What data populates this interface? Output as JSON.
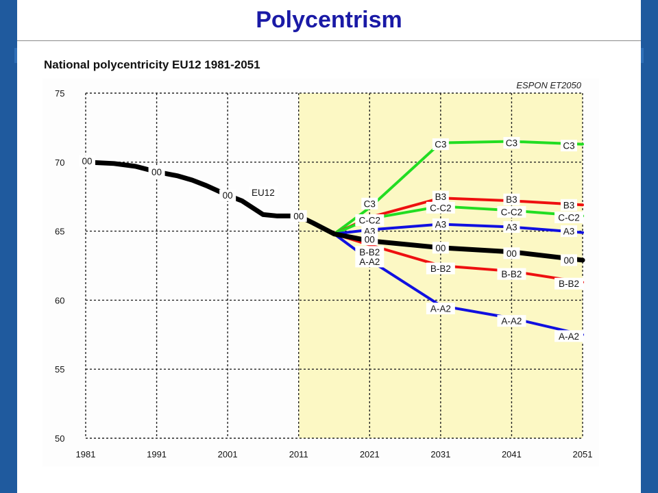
{
  "title": "Polycentrism",
  "subtitle": "National polycentricity EU12 1981-2051",
  "colors": {
    "side_bar": "#1f5a9e",
    "title": "#1a1aa6",
    "projection_background": "#fcf8c4",
    "historical_background": "#fdfdfd",
    "grid": "#222222",
    "baseline_00": "#000000",
    "a_series": "#1010e0",
    "b_series": "#ee1010",
    "c_series": "#22dd22"
  },
  "chart_data": {
    "type": "line",
    "title": "National polycentricity EU12 1981-2051",
    "source_label": "ESPON ET2050",
    "xlabel": "",
    "ylabel": "",
    "xlim": [
      1981,
      2051
    ],
    "ylim": [
      50,
      75
    ],
    "x_ticks": [
      "1981",
      "1991",
      "2001",
      "2011",
      "2021",
      "2031",
      "2041",
      "2051"
    ],
    "y_ticks": [
      "50",
      "55",
      "60",
      "65",
      "70",
      "75"
    ],
    "grid": true,
    "projection_shading_from": 2011,
    "historical": {
      "name": "EU12",
      "color": "#000000",
      "points": [
        [
          1981,
          70.0
        ],
        [
          1985,
          69.9
        ],
        [
          1988,
          69.7
        ],
        [
          1991,
          69.3
        ],
        [
          1994,
          69.0
        ],
        [
          1996,
          68.7
        ],
        [
          1998,
          68.3
        ],
        [
          2001,
          67.6
        ],
        [
          2003,
          67.2
        ],
        [
          2006,
          66.2
        ],
        [
          2008,
          66.1
        ],
        [
          2011,
          66.1
        ],
        [
          2013,
          65.6
        ],
        [
          2016,
          64.8
        ]
      ]
    },
    "scenarios": [
      {
        "name": "C3",
        "color": "#22dd22",
        "points": [
          [
            2016,
            64.8
          ],
          [
            2021,
            66.7
          ],
          [
            2031,
            71.4
          ],
          [
            2041,
            71.5
          ],
          [
            2051,
            71.3
          ]
        ]
      },
      {
        "name": "B3",
        "color": "#ee1010",
        "points": [
          [
            2016,
            64.8
          ],
          [
            2021,
            66.0
          ],
          [
            2031,
            67.4
          ],
          [
            2041,
            67.2
          ],
          [
            2051,
            66.9
          ]
        ]
      },
      {
        "name": "C-C2",
        "color": "#22dd22",
        "points": [
          [
            2016,
            64.8
          ],
          [
            2021,
            65.9
          ],
          [
            2031,
            66.8
          ],
          [
            2041,
            66.5
          ],
          [
            2051,
            66.1
          ]
        ]
      },
      {
        "name": "A3",
        "color": "#1010e0",
        "points": [
          [
            2016,
            64.8
          ],
          [
            2021,
            65.1
          ],
          [
            2031,
            65.5
          ],
          [
            2041,
            65.3
          ],
          [
            2051,
            64.9
          ]
        ]
      },
      {
        "name": "00",
        "color": "#000000",
        "points": [
          [
            2016,
            64.8
          ],
          [
            2021,
            64.3
          ],
          [
            2031,
            63.8
          ],
          [
            2041,
            63.5
          ],
          [
            2051,
            62.9
          ]
        ]
      },
      {
        "name": "B-B2",
        "color": "#ee1010",
        "points": [
          [
            2016,
            64.8
          ],
          [
            2021,
            64.0
          ],
          [
            2031,
            62.5
          ],
          [
            2041,
            62.1
          ],
          [
            2051,
            61.3
          ]
        ]
      },
      {
        "name": "A-A2",
        "color": "#1010e0",
        "points": [
          [
            2016,
            64.8
          ],
          [
            2021,
            62.9
          ],
          [
            2031,
            59.6
          ],
          [
            2041,
            58.7
          ],
          [
            2051,
            57.5
          ]
        ]
      }
    ],
    "point_labels": [
      {
        "text": "00",
        "x": 1981,
        "y": 70.0
      },
      {
        "text": "00",
        "x": 1991,
        "y": 69.3
      },
      {
        "text": "00",
        "x": 2001,
        "y": 67.6
      },
      {
        "text": "EU12",
        "x": 2006,
        "y": 67.8
      },
      {
        "text": "00",
        "x": 2011,
        "y": 66.1
      },
      {
        "text": "C3",
        "x": 2021,
        "y": 67.0
      },
      {
        "text": "C-C2",
        "x": 2021,
        "y": 65.8
      },
      {
        "text": "A3",
        "x": 2021,
        "y": 65.0
      },
      {
        "text": "00",
        "x": 2021,
        "y": 64.4
      },
      {
        "text": "B-B2",
        "x": 2021,
        "y": 63.5
      },
      {
        "text": "A-A2",
        "x": 2021,
        "y": 62.8
      },
      {
        "text": "C3",
        "x": 2031,
        "y": 71.3
      },
      {
        "text": "B3",
        "x": 2031,
        "y": 67.5
      },
      {
        "text": "C-C2",
        "x": 2031,
        "y": 66.7
      },
      {
        "text": "A3",
        "x": 2031,
        "y": 65.5
      },
      {
        "text": "00",
        "x": 2031,
        "y": 63.8
      },
      {
        "text": "B-B2",
        "x": 2031,
        "y": 62.3
      },
      {
        "text": "A-A2",
        "x": 2031,
        "y": 59.4
      },
      {
        "text": "C3",
        "x": 2041,
        "y": 71.4
      },
      {
        "text": "B3",
        "x": 2041,
        "y": 67.3
      },
      {
        "text": "C-C2",
        "x": 2041,
        "y": 66.4
      },
      {
        "text": "A3",
        "x": 2041,
        "y": 65.3
      },
      {
        "text": "00",
        "x": 2041,
        "y": 63.4
      },
      {
        "text": "B-B2",
        "x": 2041,
        "y": 61.9
      },
      {
        "text": "A-A2",
        "x": 2041,
        "y": 58.5
      },
      {
        "text": "C3",
        "x": 2051,
        "y": 71.2
      },
      {
        "text": "B3",
        "x": 2051,
        "y": 66.9
      },
      {
        "text": "C-C2",
        "x": 2051,
        "y": 66.0
      },
      {
        "text": "A3",
        "x": 2051,
        "y": 65.0
      },
      {
        "text": "00",
        "x": 2051,
        "y": 62.9
      },
      {
        "text": "B-B2",
        "x": 2051,
        "y": 61.2
      },
      {
        "text": "A-A2",
        "x": 2051,
        "y": 57.4
      }
    ]
  }
}
